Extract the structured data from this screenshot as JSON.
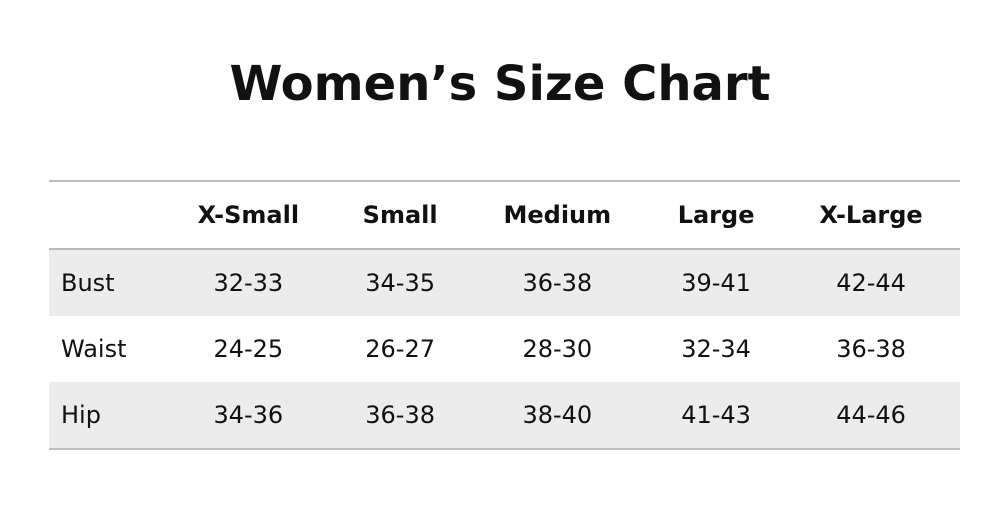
{
  "header": {
    "title": "Women’s Size Chart"
  },
  "table": {
    "columns": [
      "",
      "X-Small",
      "Small",
      "Medium",
      "Large",
      "X-Large"
    ],
    "rows": [
      [
        "Bust",
        "32-33",
        "34-35",
        "36-38",
        "39-41",
        "42-44"
      ],
      [
        "Waist",
        "24-25",
        "26-27",
        "28-30",
        "32-34",
        "36-38"
      ],
      [
        "Hip",
        "34-36",
        "36-38",
        "38-40",
        "41-43",
        "44-46"
      ]
    ]
  }
}
